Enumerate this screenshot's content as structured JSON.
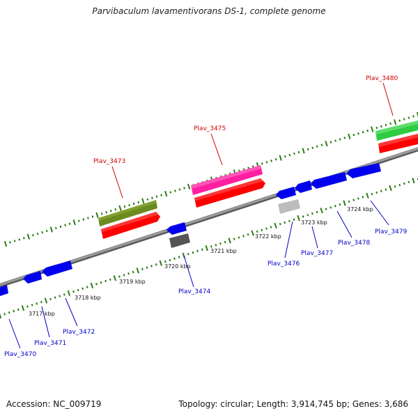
{
  "title": "Parvibaculum lavamentivorans DS-1, complete genome",
  "footer": {
    "accession": "Accession: NC_009719",
    "summary": "Topology: circular; Length: 3,914,745 bp; Genes: 3,686"
  },
  "colors": {
    "backbone": "#808080",
    "tick": "#2a7a12",
    "upper_label": "#cc0000",
    "lower_label": "#0000cc",
    "red": "#ff0000",
    "magenta": "#ff1fa0",
    "olive": "#6b8a20",
    "green": "#2ecc40",
    "blue": "#0000ee",
    "dark_gray": "#555555",
    "light_gray": "#bdbdbd"
  },
  "kbp_labels": [
    "3717 kbp",
    "3718 kbp",
    "3719 kbp",
    "3720 kbp",
    "3721 kbp",
    "3722 kbp",
    "3723 kbp",
    "3724 kbp"
  ],
  "upper_genes": [
    {
      "name": "Plav_3473",
      "color": "magenta_olive"
    },
    {
      "name": "Plav_3475",
      "color": "magenta"
    },
    {
      "name": "Plav_3480",
      "color": "green"
    }
  ],
  "lower_genes": [
    {
      "name": "Plav_3470"
    },
    {
      "name": "Plav_3471"
    },
    {
      "name": "Plav_3472"
    },
    {
      "name": "Plav_3474"
    },
    {
      "name": "Plav_3476"
    },
    {
      "name": "Plav_3477"
    },
    {
      "name": "Plav_3478"
    },
    {
      "name": "Plav_3479"
    }
  ]
}
